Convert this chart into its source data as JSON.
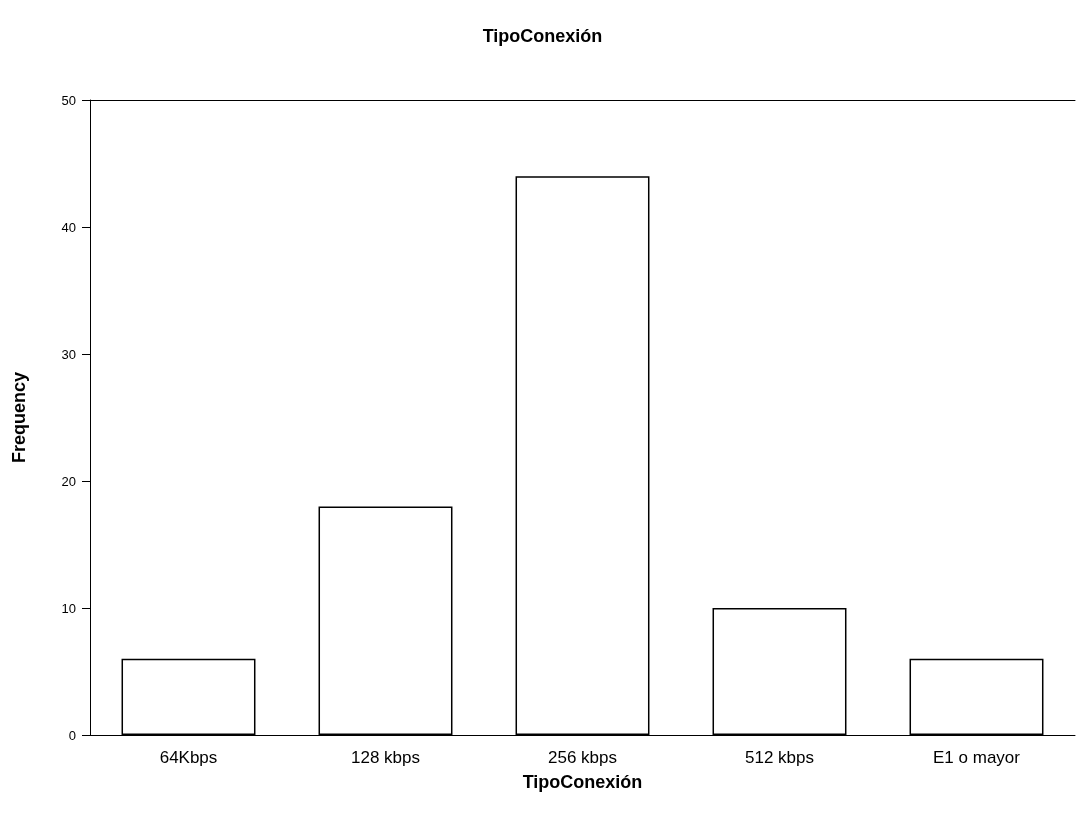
{
  "chart_data": {
    "type": "bar",
    "title": "TipoConexión",
    "xlabel": "TipoConexión",
    "ylabel": "Frequency",
    "categories": [
      "64Kbps",
      "128 kbps",
      "256 kbps",
      "512 kbps",
      "E1 o mayor"
    ],
    "values": [
      6,
      18,
      44,
      10,
      6
    ],
    "color": "#ffffff",
    "ylim": [
      0,
      50
    ],
    "yticks": [
      0,
      10,
      20,
      30,
      40,
      50
    ],
    "grid": false
  }
}
